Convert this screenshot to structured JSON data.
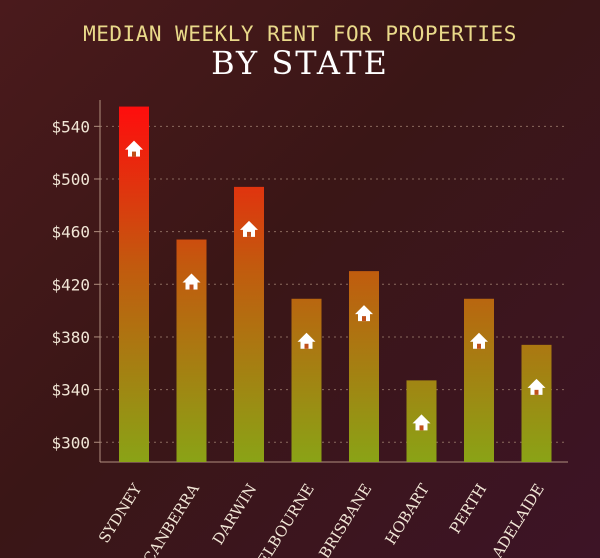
{
  "chart_data": {
    "type": "bar",
    "title": "MEDIAN WEEKLY RENT FOR PROPERTIES",
    "subtitle": "BY STATE",
    "categories": [
      "SYDNEY",
      "CANBERRA",
      "DARWIN",
      "MELBOURNE",
      "BRISBANE",
      "HOBART",
      "PERTH",
      "ADELAIDE"
    ],
    "values": [
      555,
      454,
      494,
      409,
      430,
      347,
      409,
      374
    ],
    "yticks": [
      "$300",
      "$340",
      "$380",
      "$420",
      "$460",
      "$500",
      "$540"
    ],
    "ylim": [
      285,
      560
    ],
    "grid": true,
    "xlabel": "",
    "ylabel": "",
    "colors": {
      "bar_top": "#ee1111",
      "bar_bottom": "#8aa316",
      "grid": "#8a6a5e",
      "axis": "#b08f7f"
    },
    "marker_icon": "house-icon"
  }
}
